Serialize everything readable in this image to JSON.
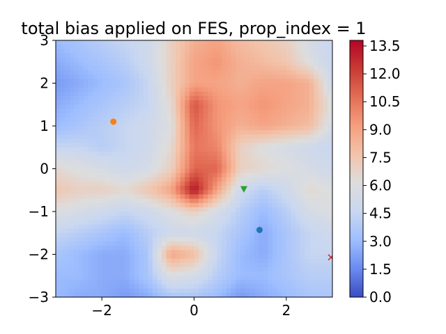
{
  "chart_data": {
    "type": "heatmap",
    "title": "total bias applied on FES, prop_index = 1",
    "xlabel": "",
    "ylabel": "",
    "xlim": [
      -3,
      3
    ],
    "ylim": [
      -3,
      3
    ],
    "x_ticks": [
      -2,
      0,
      2
    ],
    "x_tick_labels": [
      "−2",
      "0",
      "2"
    ],
    "y_ticks": [
      -3,
      -2,
      -1,
      0,
      1,
      2,
      3
    ],
    "y_tick_labels": [
      "−3",
      "−2",
      "−1",
      "0",
      "1",
      "2",
      "3"
    ],
    "grid": false,
    "colormap": "coolwarm",
    "colorbar": {
      "range": [
        0.0,
        13.8
      ],
      "ticks": [
        0.0,
        1.5,
        3.0,
        4.5,
        6.0,
        7.5,
        9.0,
        10.5,
        12.0,
        13.5
      ],
      "tick_labels": [
        "0.0",
        "1.5",
        "3.0",
        "4.5",
        "6.0",
        "7.5",
        "9.0",
        "10.5",
        "12.0",
        "13.5"
      ],
      "stops": [
        "#3b4cc0",
        "#6a8bef",
        "#9ebeff",
        "#c9d7f0",
        "#dddddd",
        "#f2c4ab",
        "#f59f7f",
        "#e46e56",
        "#c83b34",
        "#b40426"
      ]
    },
    "field": {
      "x": [
        -3,
        -2.5,
        -2,
        -1.5,
        -1,
        -0.5,
        0,
        0.5,
        1,
        1.5,
        2,
        2.5,
        3
      ],
      "y": [
        -3,
        -2.5,
        -2,
        -1.5,
        -1,
        -0.5,
        0,
        0.5,
        1,
        1.5,
        2,
        2.5,
        3
      ],
      "z": [
        [
          3.0,
          2.5,
          2.5,
          2.0,
          2.5,
          3.5,
          3.5,
          3.0,
          2.0,
          2.5,
          3.0,
          3.5,
          3.5
        ],
        [
          3.0,
          3.0,
          2.5,
          2.5,
          3.5,
          6.0,
          5.5,
          4.0,
          3.0,
          3.0,
          3.5,
          4.0,
          4.0
        ],
        [
          3.5,
          3.0,
          2.5,
          2.5,
          3.5,
          9.0,
          8.0,
          4.5,
          3.0,
          2.5,
          3.5,
          4.5,
          4.5
        ],
        [
          4.5,
          4.0,
          3.5,
          3.0,
          4.0,
          5.0,
          5.0,
          4.5,
          3.5,
          2.5,
          3.5,
          4.5,
          5.0
        ],
        [
          6.0,
          5.5,
          5.0,
          4.5,
          5.0,
          6.0,
          7.0,
          5.5,
          4.0,
          3.0,
          4.0,
          5.5,
          6.0
        ],
        [
          7.5,
          7.0,
          7.0,
          6.5,
          7.5,
          9.0,
          13.5,
          9.0,
          5.0,
          4.0,
          5.0,
          6.5,
          6.0
        ],
        [
          6.5,
          6.0,
          5.5,
          5.0,
          5.5,
          7.0,
          11.0,
          11.0,
          7.0,
          6.5,
          6.0,
          5.5,
          5.0
        ],
        [
          4.5,
          4.5,
          4.0,
          4.5,
          5.0,
          6.5,
          10.5,
          10.0,
          7.0,
          6.0,
          5.5,
          5.0,
          4.5
        ],
        [
          3.0,
          3.5,
          4.0,
          4.5,
          5.0,
          6.0,
          11.0,
          9.5,
          8.5,
          9.0,
          8.5,
          8.0,
          5.5
        ],
        [
          2.5,
          3.0,
          3.5,
          4.0,
          4.5,
          6.5,
          11.5,
          9.5,
          9.0,
          9.5,
          9.0,
          8.5,
          6.0
        ],
        [
          2.0,
          2.5,
          3.0,
          3.5,
          4.5,
          7.0,
          9.0,
          9.0,
          8.5,
          9.0,
          9.0,
          8.5,
          5.0
        ],
        [
          2.5,
          3.0,
          3.5,
          4.0,
          5.0,
          7.0,
          9.0,
          9.5,
          8.5,
          8.0,
          7.5,
          6.0,
          4.5
        ],
        [
          3.0,
          3.5,
          4.0,
          4.5,
          5.0,
          7.0,
          8.5,
          9.0,
          8.0,
          7.5,
          7.0,
          5.5,
          4.5
        ]
      ]
    },
    "markers": [
      {
        "x": -1.75,
        "y": 1.1,
        "shape": "circle",
        "color": "#ff7f0e"
      },
      {
        "x": 1.08,
        "y": -0.48,
        "shape": "triangle-down",
        "color": "#2ca02c"
      },
      {
        "x": 1.42,
        "y": -1.43,
        "shape": "circle",
        "color": "#1f77b4"
      },
      {
        "x": 2.97,
        "y": -2.07,
        "shape": "x",
        "color": "#d62728"
      }
    ]
  }
}
